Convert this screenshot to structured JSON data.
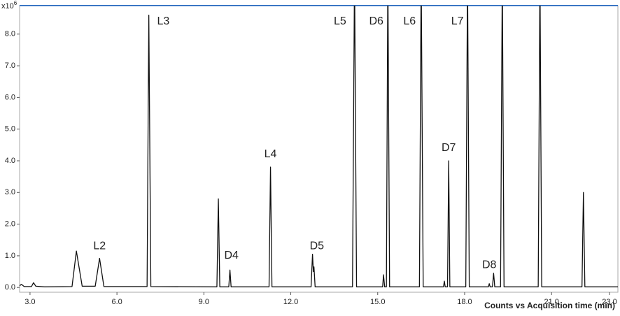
{
  "chart_data": {
    "type": "line",
    "x_label": "Counts vs Acquisition time (min)",
    "y_scale_label": "x10",
    "y_scale_exponent": "6",
    "xlim": [
      2.64,
      23.29
    ],
    "ylim": [
      -0.15,
      8.9
    ],
    "xticks": [
      {
        "value": 3,
        "label": "3.0"
      },
      {
        "value": 6,
        "label": "6.0"
      },
      {
        "value": 9,
        "label": "9.0"
      },
      {
        "value": 12,
        "label": "12.0"
      },
      {
        "value": 15,
        "label": "15.0"
      },
      {
        "value": 18,
        "label": "18.0"
      },
      {
        "value": 21,
        "label": "21.0"
      },
      {
        "value": 23,
        "label": "23.0"
      }
    ],
    "yticks": [
      {
        "value": 0,
        "label": "0.0"
      },
      {
        "value": 1,
        "label": "1.0"
      },
      {
        "value": 2,
        "label": "2.0"
      },
      {
        "value": 3,
        "label": "3.0"
      },
      {
        "value": 4,
        "label": "4.0"
      },
      {
        "value": 5,
        "label": "5.0"
      },
      {
        "value": 6,
        "label": "6.0"
      },
      {
        "value": 7,
        "label": "7.0"
      },
      {
        "value": 8,
        "label": "8.0"
      }
    ],
    "x": [
      2.64,
      2.7,
      2.8,
      3.05,
      3.12,
      3.2,
      3.5,
      4.45,
      4.6,
      4.8,
      5.25,
      5.4,
      5.55,
      7.04,
      7.1,
      7.17,
      9.45,
      9.5,
      9.55,
      9.86,
      9.9,
      9.94,
      11.25,
      11.3,
      11.35,
      12.7,
      12.75,
      12.78,
      12.8,
      12.84,
      14.13,
      14.2,
      14.27,
      15.17,
      15.2,
      15.24,
      15.3,
      15.35,
      15.41,
      16.44,
      16.5,
      16.57,
      17.27,
      17.3,
      17.33,
      17.41,
      17.45,
      17.49,
      18.04,
      18.1,
      18.16,
      18.82,
      18.85,
      18.88,
      18.96,
      19.0,
      19.04,
      19.24,
      19.3,
      19.36,
      20.54,
      20.6,
      20.66,
      22.05,
      22.1,
      22.15,
      23.29
    ],
    "series": [
      {
        "color": "#111111",
        "values": [
          0.05,
          0.1,
          0.03,
          0.03,
          0.15,
          0.04,
          0.02,
          0.03,
          1.15,
          0.04,
          0.04,
          0.92,
          0.03,
          0.03,
          8.6,
          0.03,
          0.02,
          2.8,
          0.02,
          0.02,
          0.55,
          0.02,
          0.02,
          3.8,
          0.02,
          0.02,
          1.05,
          0.5,
          0.65,
          0.02,
          0.02,
          10,
          0.02,
          0.02,
          0.4,
          0.02,
          0.02,
          10,
          0.02,
          0.02,
          10,
          0.02,
          0.02,
          0.2,
          0.02,
          0.02,
          4.0,
          0.02,
          0.02,
          10,
          0.02,
          0.02,
          0.12,
          0.02,
          0.02,
          0.45,
          0.02,
          0.02,
          10,
          0.02,
          0.02,
          10,
          0.02,
          0.02,
          3.0,
          0.02,
          0.02
        ]
      }
    ],
    "annotations": [
      {
        "text": "L2",
        "x": 5.4,
        "y": 1.3
      },
      {
        "text": "L3",
        "x": 7.6,
        "y": 8.4
      },
      {
        "text": "D4",
        "x": 9.95,
        "y": 1.0
      },
      {
        "text": "L4",
        "x": 11.3,
        "y": 4.2
      },
      {
        "text": "D5",
        "x": 12.9,
        "y": 1.3
      },
      {
        "text": "L5",
        "x": 13.7,
        "y": 8.4
      },
      {
        "text": "D6",
        "x": 14.95,
        "y": 8.4
      },
      {
        "text": "L6",
        "x": 16.1,
        "y": 8.4
      },
      {
        "text": "L7",
        "x": 17.75,
        "y": 8.4
      },
      {
        "text": "D7",
        "x": 17.45,
        "y": 4.4
      },
      {
        "text": "D8",
        "x": 18.85,
        "y": 0.7
      }
    ]
  }
}
